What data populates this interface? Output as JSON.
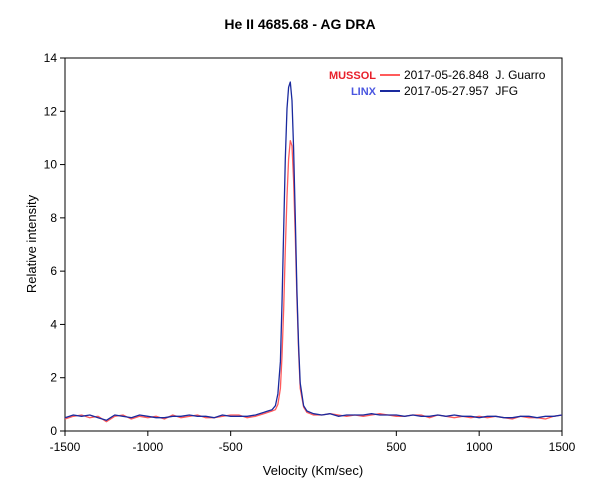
{
  "chart_data": {
    "type": "line",
    "title": "He II 4685.68 - AG DRA",
    "xlabel": "Velocity (Km/sec)",
    "ylabel": "Relative intensity",
    "xlim": [
      -1500,
      1500
    ],
    "ylim": [
      0,
      14
    ],
    "x_ticks": [
      -1500,
      -1000,
      -500,
      500,
      1000,
      1500
    ],
    "x_tick_labels": [
      "-1500",
      "-1000",
      "-500",
      "500",
      "1000",
      "1500"
    ],
    "y_ticks": [
      0,
      2,
      4,
      6,
      8,
      10,
      12,
      14
    ],
    "y_tick_labels": [
      "0",
      "2",
      "4",
      "6",
      "8",
      "10",
      "12",
      "14"
    ],
    "grid": false,
    "legend_position": "top-right",
    "series": [
      {
        "name": "2017-05-26.848  J. Guarro",
        "tag": "MUSSOL",
        "color": "#ff5b5b",
        "tag_color": "#e8202a",
        "x": [
          -1500,
          -1450,
          -1400,
          -1350,
          -1300,
          -1250,
          -1200,
          -1150,
          -1100,
          -1050,
          -1000,
          -950,
          -900,
          -850,
          -800,
          -750,
          -700,
          -650,
          -600,
          -550,
          -500,
          -450,
          -400,
          -350,
          -300,
          -275,
          -250,
          -230,
          -215,
          -200,
          -190,
          -180,
          -170,
          -160,
          -150,
          -140,
          -130,
          -120,
          -110,
          -100,
          -90,
          -80,
          -60,
          -40,
          -20,
          0,
          50,
          100,
          150,
          200,
          250,
          300,
          350,
          400,
          450,
          500,
          550,
          600,
          650,
          700,
          750,
          800,
          850,
          900,
          950,
          1000,
          1050,
          1100,
          1150,
          1200,
          1250,
          1300,
          1350,
          1400,
          1450,
          1500
        ],
        "y": [
          0.45,
          0.55,
          0.6,
          0.5,
          0.55,
          0.35,
          0.55,
          0.6,
          0.45,
          0.55,
          0.5,
          0.55,
          0.45,
          0.6,
          0.5,
          0.55,
          0.6,
          0.5,
          0.5,
          0.55,
          0.6,
          0.6,
          0.5,
          0.55,
          0.65,
          0.7,
          0.75,
          0.8,
          1.0,
          1.6,
          2.8,
          4.6,
          6.8,
          8.8,
          10.2,
          10.9,
          10.7,
          9.4,
          7.3,
          5.0,
          3.0,
          1.6,
          0.9,
          0.7,
          0.65,
          0.6,
          0.6,
          0.65,
          0.6,
          0.55,
          0.6,
          0.55,
          0.6,
          0.65,
          0.6,
          0.55,
          0.55,
          0.6,
          0.6,
          0.5,
          0.6,
          0.55,
          0.5,
          0.55,
          0.5,
          0.55,
          0.5,
          0.55,
          0.5,
          0.45,
          0.55,
          0.5,
          0.5,
          0.45,
          0.55,
          0.6
        ]
      },
      {
        "name": "2017-05-27.957  JFG",
        "tag": "LINX",
        "color": "#1a2a9e",
        "tag_color": "#4a56e0",
        "x": [
          -1500,
          -1450,
          -1400,
          -1350,
          -1300,
          -1250,
          -1200,
          -1150,
          -1100,
          -1050,
          -1000,
          -950,
          -900,
          -850,
          -800,
          -750,
          -700,
          -650,
          -600,
          -550,
          -500,
          -450,
          -400,
          -350,
          -300,
          -275,
          -250,
          -230,
          -215,
          -200,
          -190,
          -180,
          -170,
          -160,
          -150,
          -140,
          -130,
          -120,
          -110,
          -100,
          -90,
          -80,
          -60,
          -40,
          -20,
          0,
          50,
          100,
          150,
          200,
          250,
          300,
          350,
          400,
          450,
          500,
          550,
          600,
          650,
          700,
          750,
          800,
          850,
          900,
          950,
          1000,
          1050,
          1100,
          1150,
          1200,
          1250,
          1300,
          1350,
          1400,
          1450,
          1500
        ],
        "y": [
          0.5,
          0.6,
          0.55,
          0.6,
          0.5,
          0.4,
          0.6,
          0.55,
          0.5,
          0.6,
          0.55,
          0.5,
          0.5,
          0.55,
          0.55,
          0.6,
          0.55,
          0.55,
          0.5,
          0.6,
          0.55,
          0.55,
          0.55,
          0.6,
          0.7,
          0.75,
          0.8,
          0.95,
          1.4,
          2.6,
          4.8,
          7.6,
          10.2,
          12.1,
          12.9,
          13.1,
          12.4,
          10.6,
          8.0,
          5.3,
          3.2,
          1.8,
          0.95,
          0.75,
          0.7,
          0.65,
          0.6,
          0.65,
          0.55,
          0.6,
          0.6,
          0.6,
          0.65,
          0.6,
          0.6,
          0.6,
          0.55,
          0.6,
          0.55,
          0.55,
          0.6,
          0.55,
          0.6,
          0.55,
          0.55,
          0.5,
          0.55,
          0.55,
          0.5,
          0.5,
          0.55,
          0.55,
          0.5,
          0.55,
          0.55,
          0.6
        ]
      }
    ]
  }
}
